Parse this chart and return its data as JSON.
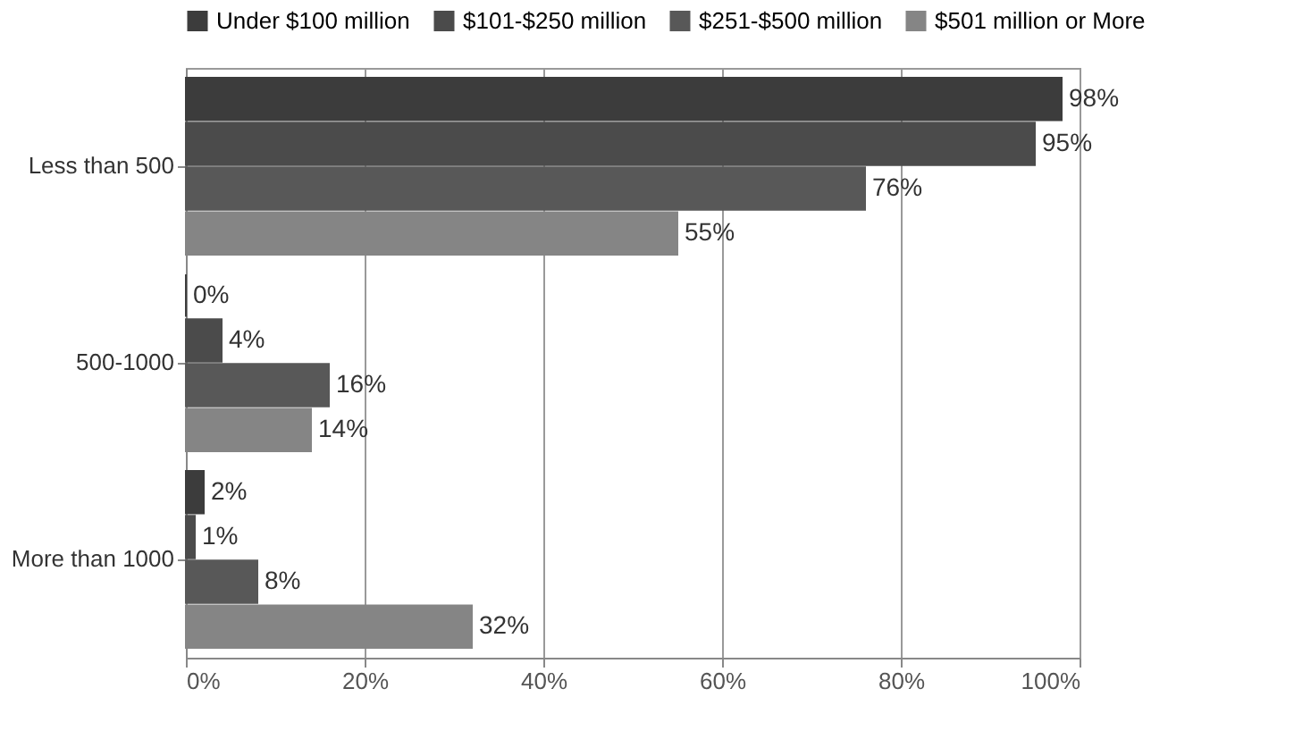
{
  "chart_data": {
    "type": "bar",
    "orientation": "horizontal",
    "categories": [
      "Less than 500",
      "500-1000",
      "More than 1000"
    ],
    "series": [
      {
        "name": "Under $100 million",
        "color": "#3c3c3c",
        "values": [
          98,
          0,
          2
        ],
        "value_labels": [
          "98%",
          "0%",
          "2%"
        ]
      },
      {
        "name": "$101-$250 million",
        "color": "#4b4b4b",
        "values": [
          95,
          4,
          1
        ],
        "value_labels": [
          "95%",
          "4%",
          "1%"
        ]
      },
      {
        "name": "$251-$500 million",
        "color": "#585858",
        "values": [
          76,
          16,
          8
        ],
        "value_labels": [
          "76%",
          "16%",
          "8%"
        ]
      },
      {
        "name": "$501 million or More",
        "color": "#858585",
        "values": [
          55,
          14,
          32
        ],
        "value_labels": [
          "55%",
          "14%",
          "32%"
        ]
      }
    ],
    "xlim": [
      0,
      100
    ],
    "xticks": [
      {
        "value": 0,
        "label": "0%"
      },
      {
        "value": 20,
        "label": "20%"
      },
      {
        "value": 40,
        "label": "40%"
      },
      {
        "value": 60,
        "label": "60%"
      },
      {
        "value": 80,
        "label": "80%"
      },
      {
        "value": 100,
        "label": "100%"
      }
    ],
    "grid": "x",
    "legend": "top"
  }
}
